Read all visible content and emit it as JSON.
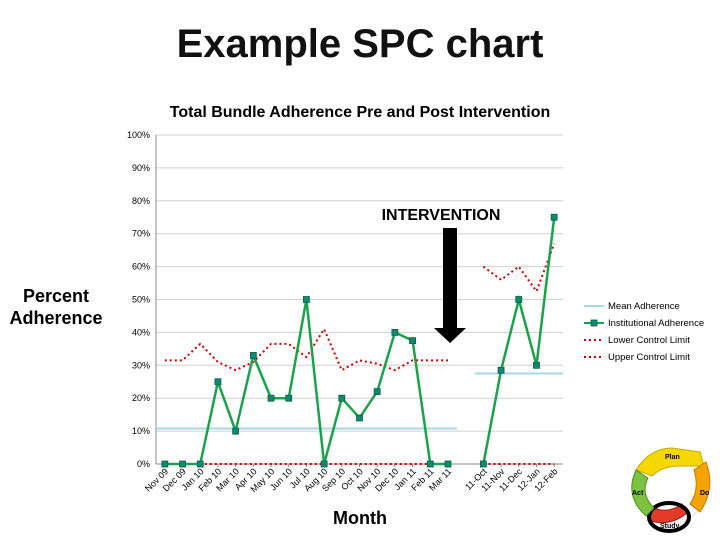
{
  "slide": {
    "title": "Example SPC chart"
  },
  "chart_data": {
    "type": "line",
    "title": "Total Bundle Adherence Pre and Post Intervention",
    "xlabel": "Month",
    "ylabel_lines": [
      "Percent",
      "Adherence"
    ],
    "ylim": [
      0,
      100
    ],
    "y_ticks": [
      "0%",
      "10%",
      "20%",
      "30%",
      "40%",
      "50%",
      "60%",
      "70%",
      "80%",
      "90%",
      "100%"
    ],
    "categories": [
      "Nov 09",
      "Dec 09",
      "Jan 10",
      "Feb 10",
      "Mar 10",
      "Apr 10",
      "May 10",
      "Jun 10",
      "Jul 10",
      "Aug 10",
      "Sep 10",
      "Oct 10",
      "Nov 10",
      "Dec 10",
      "Jan 11",
      "Feb 11",
      "Mar 11",
      "",
      "11-Oct",
      "11-Nov",
      "11-Dec",
      "12-Jan",
      "12-Feb"
    ],
    "series": [
      {
        "name": "Mean Adherence",
        "color": "#a8d8e0",
        "style": "solid",
        "values": [
          10.8,
          10.8,
          10.8,
          10.8,
          10.8,
          10.8,
          10.8,
          10.8,
          10.8,
          10.8,
          10.8,
          10.8,
          10.8,
          10.8,
          10.8,
          10.8,
          10.8,
          null,
          27.5,
          27.5,
          27.5,
          27.5,
          27.5
        ]
      },
      {
        "name": "Institutional Adherence",
        "color": "#1aa34a",
        "style": "solid-markers",
        "values": [
          0,
          0,
          0,
          25,
          10,
          33,
          20,
          20,
          50,
          0,
          20,
          14,
          22,
          40,
          37.5,
          0,
          0,
          null,
          0,
          28.5,
          50,
          30,
          75
        ]
      },
      {
        "name": "Lower Control Limit",
        "color": "#cc0000",
        "style": "dotted",
        "values": [
          0,
          0,
          0,
          0,
          0,
          0,
          0,
          0,
          0,
          0,
          0,
          0,
          0,
          0,
          0,
          0,
          0,
          null,
          0,
          0,
          0,
          0,
          0
        ]
      },
      {
        "name": "Upper Control Limit",
        "color": "#cc0000",
        "style": "dotted",
        "values": [
          31.5,
          31.5,
          36.5,
          31,
          28.5,
          31,
          36.5,
          36.5,
          32.5,
          41,
          28.5,
          31.5,
          30.5,
          28.5,
          31.5,
          31.5,
          31.5,
          null,
          60,
          56,
          60,
          52.5,
          67
        ]
      }
    ],
    "annotation": "INTERVENTION",
    "grid": true,
    "legend": "right"
  },
  "pdsa": {
    "plan": "Plan",
    "do": "Do",
    "study": "Study",
    "act": "Act"
  }
}
